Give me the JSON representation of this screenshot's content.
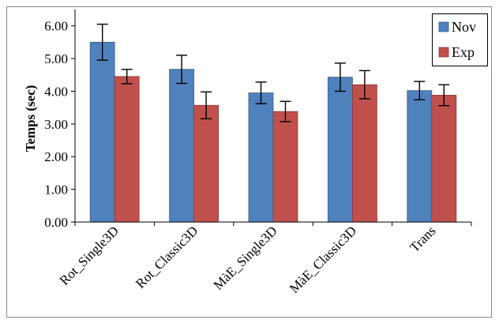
{
  "chart_data": {
    "type": "bar",
    "title": "",
    "xlabel": "",
    "ylabel": "Temps (sec)",
    "ylim": [
      0,
      6.5
    ],
    "yticks": [
      "0.00",
      "1.00",
      "2.00",
      "3.00",
      "4.00",
      "5.00",
      "6.00"
    ],
    "grid": false,
    "legend_position": "top-right",
    "categories": [
      "Rot_Single3D",
      "Rot_Classic3D",
      "MàE_Single3D",
      "MàE_Classic3D",
      "Trans"
    ],
    "series": [
      {
        "name": "Nov",
        "color": "#4F81BD",
        "values": [
          5.5,
          4.67,
          3.95,
          4.43,
          4.02
        ],
        "error": [
          0.55,
          0.43,
          0.33,
          0.43,
          0.28
        ]
      },
      {
        "name": "Exp",
        "color": "#C0504D",
        "values": [
          4.45,
          3.57,
          3.38,
          4.2,
          3.88
        ],
        "error": [
          0.22,
          0.41,
          0.31,
          0.43,
          0.32
        ]
      }
    ]
  }
}
